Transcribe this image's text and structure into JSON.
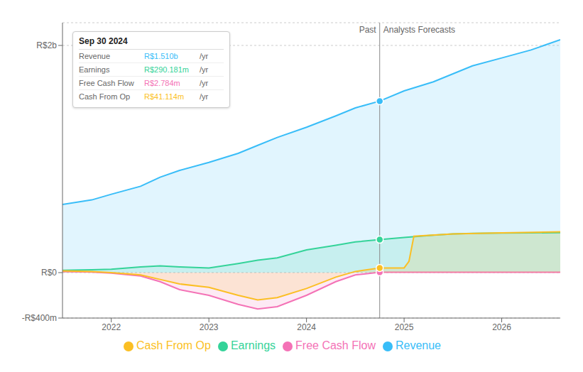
{
  "chart_data": {
    "type": "area",
    "xlim": [
      2021.5,
      2026.6
    ],
    "xticks": [
      2022,
      2023,
      2024,
      2025,
      2026
    ],
    "ylim": [
      -400,
      2200
    ],
    "yticks": [
      {
        "value": -400,
        "label": "-R$400m"
      },
      {
        "value": 0,
        "label": "R$0"
      },
      {
        "value": 2000,
        "label": "R$2b"
      }
    ],
    "grid": true,
    "legend": "bottom",
    "divider": {
      "x": 2024.75,
      "labels": [
        "Past",
        "Analysts Forecasts"
      ]
    },
    "series": [
      {
        "name": "Revenue",
        "color": "#38bdf8",
        "x": [
          2021.5,
          2021.8,
          2022.0,
          2022.3,
          2022.5,
          2022.7,
          2023.0,
          2023.3,
          2023.5,
          2023.7,
          2024.0,
          2024.3,
          2024.5,
          2024.75,
          2024.75,
          2025.0,
          2025.3,
          2025.5,
          2025.7,
          2026.0,
          2026.3,
          2026.6
        ],
        "values": [
          600,
          640,
          690,
          760,
          840,
          900,
          970,
          1050,
          1120,
          1190,
          1280,
          1380,
          1450,
          1510,
          1510,
          1600,
          1680,
          1750,
          1820,
          1890,
          1960,
          2050
        ],
        "highlight": {
          "x": 2024.75,
          "y": 1510
        }
      },
      {
        "name": "Earnings",
        "color": "#34d399",
        "x": [
          2021.5,
          2021.8,
          2022.0,
          2022.3,
          2022.5,
          2022.7,
          2023.0,
          2023.3,
          2023.5,
          2023.7,
          2024.0,
          2024.3,
          2024.5,
          2024.75,
          2024.75,
          2025.0,
          2025.3,
          2025.5,
          2025.7,
          2026.0,
          2026.3,
          2026.6
        ],
        "values": [
          20,
          25,
          30,
          50,
          60,
          50,
          40,
          80,
          110,
          130,
          200,
          240,
          270,
          290,
          290,
          310,
          330,
          340,
          345,
          348,
          350,
          352
        ],
        "highlight": {
          "x": 2024.75,
          "y": 290
        }
      },
      {
        "name": "Free Cash Flow",
        "color": "#f472b6",
        "x": [
          2021.5,
          2021.8,
          2022.0,
          2022.3,
          2022.5,
          2022.7,
          2023.0,
          2023.3,
          2023.5,
          2023.7,
          2024.0,
          2024.3,
          2024.5,
          2024.75,
          2024.75,
          2025.0,
          2025.5,
          2026.0,
          2026.6
        ],
        "values": [
          10,
          5,
          -5,
          -30,
          -80,
          -150,
          -200,
          -280,
          -320,
          -300,
          -200,
          -80,
          -20,
          3,
          3,
          3,
          3,
          3,
          3
        ],
        "highlight": {
          "x": 2024.75,
          "y": 3
        }
      },
      {
        "name": "Cash From Op",
        "color": "#fbbf24",
        "x": [
          2021.5,
          2021.8,
          2022.0,
          2022.3,
          2022.5,
          2022.7,
          2023.0,
          2023.3,
          2023.5,
          2023.7,
          2024.0,
          2024.3,
          2024.5,
          2024.75,
          2024.75,
          2025.0,
          2025.05,
          2025.1,
          2025.5,
          2026.0,
          2026.6
        ],
        "values": [
          15,
          10,
          0,
          -20,
          -60,
          -100,
          -130,
          -200,
          -240,
          -220,
          -140,
          -40,
          10,
          41,
          41,
          41,
          100,
          320,
          340,
          350,
          360
        ],
        "highlight": {
          "x": 2024.75,
          "y": 41
        }
      }
    ],
    "tooltip": {
      "title": "Sep 30 2024",
      "rows": [
        {
          "label": "Revenue",
          "value": "R$1.510b",
          "unit": "/yr",
          "color": "#38bdf8"
        },
        {
          "label": "Earnings",
          "value": "R$290.181m",
          "unit": "/yr",
          "color": "#34d399"
        },
        {
          "label": "Free Cash Flow",
          "value": "R$2.784m",
          "unit": "/yr",
          "color": "#f472b6"
        },
        {
          "label": "Cash From Op",
          "value": "R$41.114m",
          "unit": "/yr",
          "color": "#fbbf24"
        }
      ]
    }
  }
}
